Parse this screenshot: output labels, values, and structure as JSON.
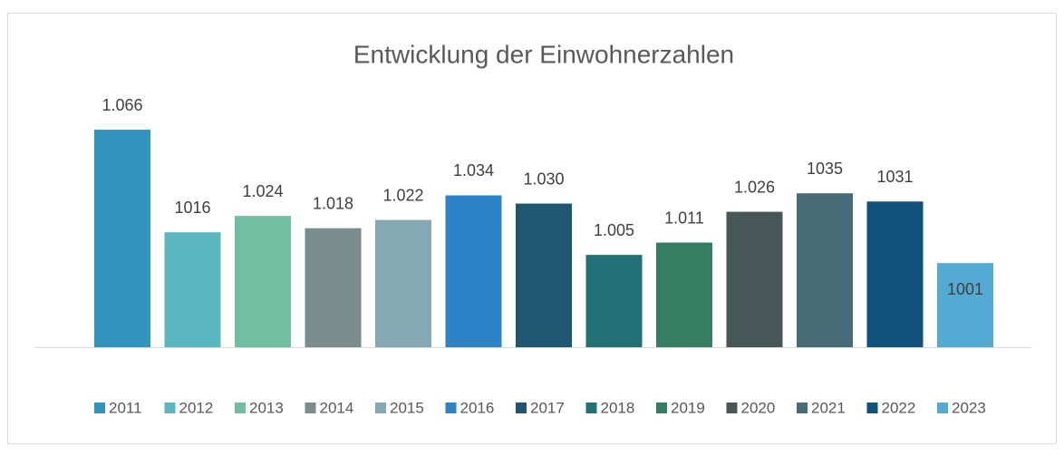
{
  "chart_data": {
    "type": "bar",
    "title": "Entwicklung der Einwohnerzahlen",
    "ylim": [
      960,
      1070
    ],
    "series": [
      {
        "name": "2011",
        "color": "#3194be",
        "values": [
          1066
        ],
        "value_labels": [
          "1.066"
        ]
      },
      {
        "name": "2012",
        "color": "#5ab7c0",
        "values": [
          1016
        ],
        "value_labels": [
          "1016"
        ]
      },
      {
        "name": "2013",
        "color": "#72bea2",
        "values": [
          1024
        ],
        "value_labels": [
          "1.024"
        ]
      },
      {
        "name": "2014",
        "color": "#7a8c8c",
        "values": [
          1018
        ],
        "value_labels": [
          "1.018"
        ]
      },
      {
        "name": "2015",
        "color": "#84a9b4",
        "values": [
          1022
        ],
        "value_labels": [
          "1.022"
        ]
      },
      {
        "name": "2016",
        "color": "#2e83c6",
        "values": [
          1034
        ],
        "value_labels": [
          "1.034"
        ]
      },
      {
        "name": "2017",
        "color": "#1f5773",
        "values": [
          1030
        ],
        "value_labels": [
          "1.030"
        ]
      },
      {
        "name": "2018",
        "color": "#227177",
        "values": [
          1005
        ],
        "value_labels": [
          "1.005"
        ]
      },
      {
        "name": "2019",
        "color": "#377d64",
        "values": [
          1011
        ],
        "value_labels": [
          "1.011"
        ]
      },
      {
        "name": "2020",
        "color": "#475657",
        "values": [
          1026
        ],
        "value_labels": [
          "1.026"
        ]
      },
      {
        "name": "2021",
        "color": "#476c77",
        "values": [
          1035
        ],
        "value_labels": [
          "1035"
        ]
      },
      {
        "name": "2022",
        "color": "#11527a",
        "values": [
          1031
        ],
        "value_labels": [
          "1031"
        ]
      },
      {
        "name": "2023",
        "color": "#53aad3",
        "values": [
          1001
        ],
        "value_labels": [
          "1001"
        ]
      }
    ]
  }
}
